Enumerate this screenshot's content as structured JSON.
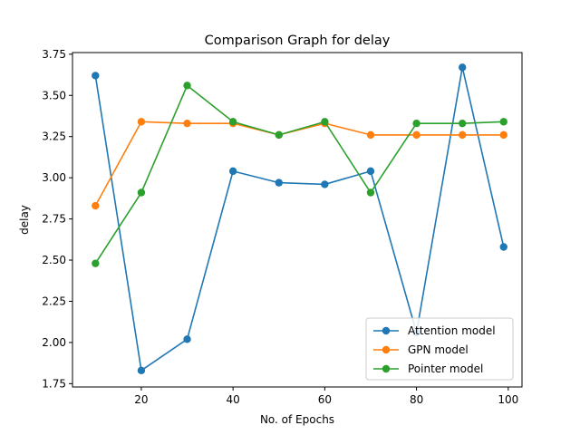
{
  "chart_data": {
    "type": "line",
    "title": "Comparison Graph for delay",
    "xlabel": "No. of Epochs",
    "ylabel": "delay",
    "x": [
      10,
      20,
      30,
      40,
      50,
      60,
      70,
      80,
      90,
      99
    ],
    "xlim": [
      5,
      103
    ],
    "ylim": [
      1.73,
      3.76
    ],
    "xticks": [
      20,
      40,
      60,
      80,
      100
    ],
    "xtick_labels": [
      "20",
      "40",
      "60",
      "80",
      "100"
    ],
    "yticks": [
      1.75,
      2.0,
      2.25,
      2.5,
      2.75,
      3.0,
      3.25,
      3.5,
      3.75
    ],
    "ytick_labels": [
      "1.75",
      "2.00",
      "2.25",
      "2.50",
      "2.75",
      "3.00",
      "3.25",
      "3.50",
      "3.75"
    ],
    "grid": false,
    "legend_position": "lower-right",
    "series": [
      {
        "name": "Attention model",
        "color": "#1f77b4",
        "values": [
          3.62,
          1.83,
          2.02,
          3.04,
          2.97,
          2.96,
          3.04,
          2.06,
          3.67,
          2.58
        ]
      },
      {
        "name": "GPN model",
        "color": "#ff7f0e",
        "values": [
          2.83,
          3.34,
          3.33,
          3.33,
          3.26,
          3.33,
          3.26,
          3.26,
          3.26,
          3.26
        ]
      },
      {
        "name": "Pointer model",
        "color": "#2ca02c",
        "values": [
          2.48,
          2.91,
          3.56,
          3.34,
          3.26,
          3.34,
          2.91,
          3.33,
          3.33,
          3.34
        ]
      }
    ]
  }
}
